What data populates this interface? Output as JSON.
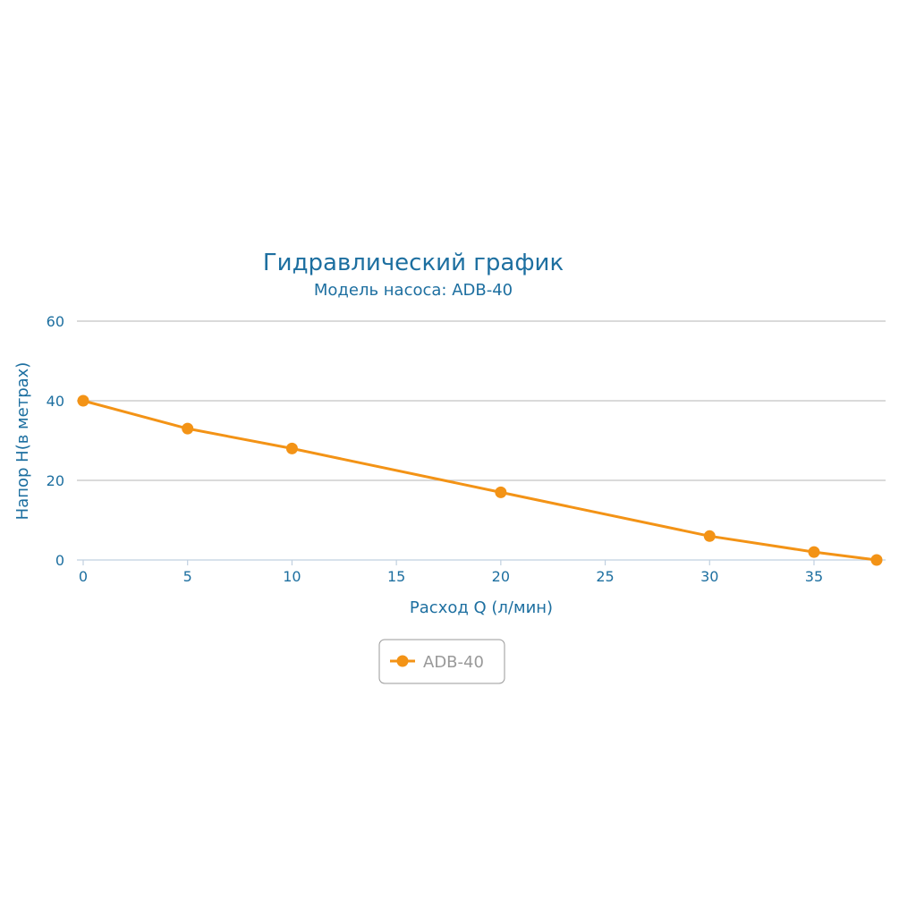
{
  "chart_data": {
    "type": "line",
    "title": "Гидравлический график",
    "subtitle": "Модель насоса: ADB-40",
    "xlabel": "Расход Q (л/мин)",
    "ylabel": "Напор H(в метрах)",
    "xlim": [
      0,
      38
    ],
    "ylim": [
      0,
      60
    ],
    "x_ticks": [
      "0",
      "5",
      "10",
      "15",
      "20",
      "25",
      "30",
      "35"
    ],
    "y_ticks": [
      "0",
      "20",
      "40",
      "60"
    ],
    "grid": true,
    "legend_position": "bottom-center",
    "series": [
      {
        "name": "ADB-40",
        "color": "#f39316",
        "x": [
          0,
          5,
          10,
          20,
          30,
          35,
          38
        ],
        "y": [
          40,
          33,
          28,
          17,
          6,
          2,
          0
        ]
      }
    ]
  }
}
